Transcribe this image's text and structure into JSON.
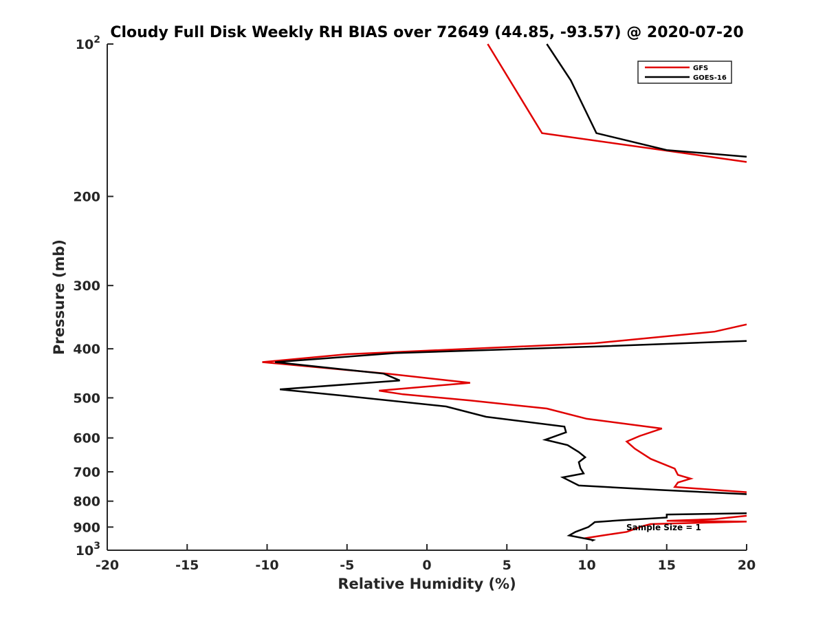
{
  "chart_data": {
    "type": "line",
    "title": "Cloudy Full Disk Weekly RH BIAS over 72649 (44.85, -93.57) @ 2020-07-20",
    "xlabel": "Relative Humidity (%)",
    "ylabel": "Pressure (mb)",
    "xlim": [
      -20,
      20
    ],
    "ylim": [
      100,
      1000
    ],
    "y_scale": "log",
    "y_reversed": true,
    "grid": false,
    "legend_position": "top-right",
    "x_ticks": [
      "-20",
      "-15",
      "-10",
      "-5",
      "0",
      "5",
      "10",
      "15",
      "20"
    ],
    "y_ticks": [
      {
        "value": 100,
        "base": "10",
        "exp": "2"
      },
      {
        "value": 200,
        "label": "200"
      },
      {
        "value": 300,
        "label": "300"
      },
      {
        "value": 400,
        "label": "400"
      },
      {
        "value": 500,
        "label": "500"
      },
      {
        "value": 600,
        "label": "600"
      },
      {
        "value": 700,
        "label": "700"
      },
      {
        "value": 800,
        "label": "800"
      },
      {
        "value": 900,
        "label": "900"
      },
      {
        "value": 1000,
        "base": "10",
        "exp": "3"
      }
    ],
    "annotation": "Sample Size = 1",
    "series": [
      {
        "name": "GFS",
        "color": "#e00000",
        "segments": [
          [
            [
              3.8,
              100
            ],
            [
              7.2,
              150
            ],
            [
              20,
              171
            ]
          ],
          [
            [
              20,
              358
            ],
            [
              18,
              370
            ],
            [
              10.5,
              390
            ],
            [
              -5,
              410
            ],
            [
              -10.3,
              425
            ],
            [
              -2.5,
              448
            ],
            [
              2.7,
              467
            ],
            [
              -3,
              484
            ],
            [
              -1.5,
              492
            ],
            [
              2.7,
              506
            ],
            [
              7.5,
              525
            ],
            [
              10,
              550
            ],
            [
              14.7,
              575
            ],
            [
              13.3,
              595
            ],
            [
              12.5,
              610
            ],
            [
              13,
              630
            ],
            [
              14,
              660
            ],
            [
              15.5,
              690
            ],
            [
              15.7,
              710
            ],
            [
              16.5,
              722
            ],
            [
              15.7,
              735
            ],
            [
              15.5,
              750
            ],
            [
              20,
              768
            ]
          ],
          [
            [
              20,
              855
            ],
            [
              18,
              868
            ],
            [
              15,
              875
            ],
            [
              20,
              878
            ],
            [
              17.5,
              882
            ],
            [
              14,
              888
            ],
            [
              13.5,
              896
            ],
            [
              12.5,
              920
            ],
            [
              11,
              935
            ],
            [
              9.8,
              948
            ]
          ]
        ]
      },
      {
        "name": "GOES-16",
        "color": "#000000",
        "segments": [
          [
            [
              7.5,
              100
            ],
            [
              9,
              118
            ],
            [
              10.6,
              150
            ],
            [
              15,
              162
            ],
            [
              20,
              167
            ]
          ],
          [
            [
              20,
              386
            ],
            [
              10.5,
              396
            ],
            [
              -2,
              408
            ],
            [
              -9.5,
              425
            ],
            [
              -2.7,
              448
            ],
            [
              -1.7,
              462
            ],
            [
              -9.2,
              481
            ],
            [
              -5,
              496
            ],
            [
              1.2,
              520
            ],
            [
              3.7,
              545
            ],
            [
              8.6,
              570
            ],
            [
              8.7,
              585
            ],
            [
              7.4,
              605
            ],
            [
              8.8,
              620
            ],
            [
              9.5,
              640
            ],
            [
              9.9,
              655
            ],
            [
              9.5,
              670
            ],
            [
              9.6,
              688
            ],
            [
              9.8,
              705
            ],
            [
              8.5,
              718
            ],
            [
              9.5,
              745
            ],
            [
              14.5,
              760
            ],
            [
              20,
              775
            ]
          ],
          [
            [
              20,
              845
            ],
            [
              15,
              850
            ],
            [
              15,
              862
            ],
            [
              12,
              873
            ],
            [
              10.5,
              880
            ],
            [
              10.4,
              885
            ],
            [
              10.1,
              900
            ],
            [
              9.3,
              920
            ],
            [
              8.9,
              935
            ],
            [
              10.4,
              955
            ],
            [
              10.3,
              958
            ]
          ]
        ]
      }
    ]
  }
}
